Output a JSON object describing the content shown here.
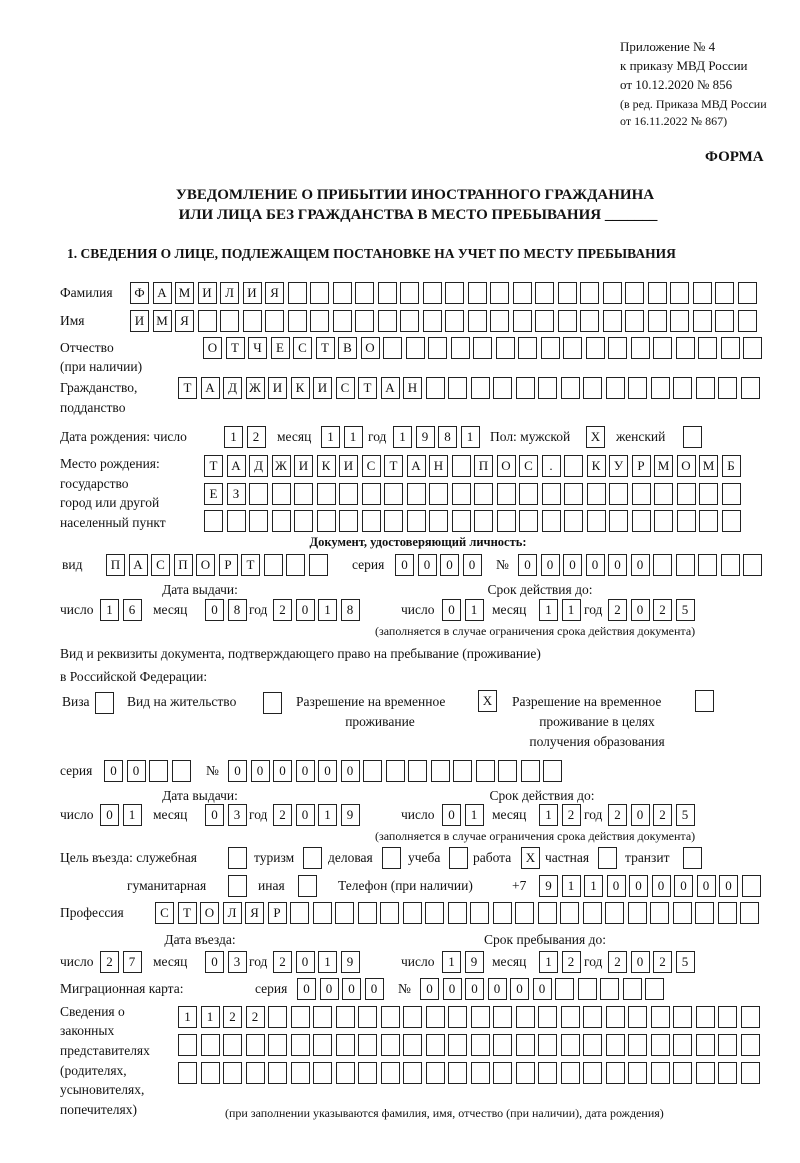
{
  "header": {
    "appendix_line1": "Приложение № 4",
    "appendix_line2": "к приказу МВД России",
    "appendix_line3": "от 10.12.2020 № 856",
    "appendix_line4": "(в ред. Приказа МВД России",
    "appendix_line5": "от 16.11.2022 № 867)",
    "form_label": "ФОРМА",
    "title_line1": "УВЕДОМЛЕНИЕ О ПРИБЫТИИ ИНОСТРАННОГО ГРАЖДАНИНА",
    "title_line2": "ИЛИ ЛИЦА БЕЗ ГРАЖДАНСТВА В МЕСТО ПРЕБЫВАНИЯ _______",
    "section_title": "1. СВЕДЕНИЯ О ЛИЦЕ, ПОДЛЕЖАЩЕМ ПОСТАНОВКЕ НА УЧЕТ ПО МЕСТУ ПРЕБЫВАНИЯ"
  },
  "labels": {
    "surname": "Фамилия",
    "name": "Имя",
    "patronymic": "Отчество",
    "patronymic_note": "(при наличии)",
    "citizenship": "Гражданство,",
    "citizenship2": "подданство",
    "birth_date": "Дата рождения:  число",
    "month": "месяц",
    "year": "год",
    "day": "число",
    "sex_male": "Пол: мужской",
    "sex_female": "женский",
    "birthplace1": "Место рождения:",
    "birthplace2": "государство",
    "birthplace3": "город или другой",
    "birthplace4": "населенный пункт",
    "id_doc": "Документ, удостоверяющий личность:",
    "kind": "вид",
    "series": "серия",
    "number": "№",
    "issue_date": "Дата выдачи:",
    "valid_until": "Срок действия до:",
    "validity_note": "(заполняется в случае ограничения срока действия документа)",
    "residence_doc1": "Вид и реквизиты документа, подтверждающего право на пребывание (проживание)",
    "residence_doc2": "в Российской Федерации:",
    "visa": "Виза",
    "residence_permit": "Вид на жительство",
    "temp_permit1": "Разрешение на временное",
    "temp_permit2": "проживание",
    "edu_permit1": "Разрешение на временное",
    "edu_permit2": "проживание в целях",
    "edu_permit3": "получения образования",
    "purpose": "Цель въезда: служебная",
    "tourism": "туризм",
    "business": "деловая",
    "study": "учеба",
    "work": "работа",
    "private": "частная",
    "transit": "транзит",
    "humanitarian": "гуманитарная",
    "other": "иная",
    "phone": "Телефон (при наличии)",
    "phone_prefix": "+7",
    "profession": "Профессия",
    "entry_date": "Дата въезда:",
    "stay_until": "Срок пребывания до:",
    "migration_card": "Миграционная карта:",
    "reps1": "Сведения о",
    "reps2": "законных",
    "reps3": "представителях",
    "reps4": "(родителях,",
    "reps5": "усыновителях,",
    "reps6": "попечителях)",
    "reps_note": "(при заполнении указываются фамилия, имя, отчество (при наличии), дата рождения)"
  },
  "fields": {
    "surname": [
      "Ф",
      "А",
      "М",
      "И",
      "Л",
      "И",
      "Я",
      "",
      "",
      "",
      "",
      "",
      "",
      "",
      "",
      "",
      "",
      "",
      "",
      "",
      "",
      "",
      "",
      "",
      "",
      "",
      "",
      ""
    ],
    "name": [
      "И",
      "М",
      "Я",
      "",
      "",
      "",
      "",
      "",
      "",
      "",
      "",
      "",
      "",
      "",
      "",
      "",
      "",
      "",
      "",
      "",
      "",
      "",
      "",
      "",
      "",
      "",
      "",
      ""
    ],
    "patronymic": [
      "О",
      "Т",
      "Ч",
      "Е",
      "С",
      "Т",
      "В",
      "О",
      "",
      "",
      "",
      "",
      "",
      "",
      "",
      "",
      "",
      "",
      "",
      "",
      "",
      "",
      "",
      "",
      ""
    ],
    "citizenship": [
      "Т",
      "А",
      "Д",
      "Ж",
      "И",
      "К",
      "И",
      "С",
      "Т",
      "А",
      "Н",
      "",
      "",
      "",
      "",
      "",
      "",
      "",
      "",
      "",
      "",
      "",
      "",
      "",
      "",
      ""
    ],
    "birth_day": [
      "1",
      "2"
    ],
    "birth_month": [
      "1",
      "1"
    ],
    "birth_year": [
      "1",
      "9",
      "8",
      "1"
    ],
    "sex_male": [
      "X"
    ],
    "sex_female": [
      ""
    ],
    "birthplace_row1": [
      "Т",
      "А",
      "Д",
      "Ж",
      "И",
      "К",
      "И",
      "С",
      "Т",
      "А",
      "Н",
      "",
      "П",
      "О",
      "С",
      ".",
      "",
      "К",
      "У",
      "Р",
      "М",
      "О",
      "М",
      "Б"
    ],
    "birthplace_row2": [
      "Е",
      "З",
      "",
      "",
      "",
      "",
      "",
      "",
      "",
      "",
      "",
      "",
      "",
      "",
      "",
      "",
      "",
      "",
      "",
      "",
      "",
      "",
      "",
      ""
    ],
    "birthplace_row3": [
      "",
      "",
      "",
      "",
      "",
      "",
      "",
      "",
      "",
      "",
      "",
      "",
      "",
      "",
      "",
      "",
      "",
      "",
      "",
      "",
      "",
      "",
      "",
      ""
    ],
    "id_kind": [
      "П",
      "А",
      "С",
      "П",
      "О",
      "Р",
      "Т",
      "",
      "",
      ""
    ],
    "id_series": [
      "0",
      "0",
      "0",
      "0"
    ],
    "id_number": [
      "0",
      "0",
      "0",
      "0",
      "0",
      "0",
      "",
      "",
      "",
      "",
      ""
    ],
    "id_issue_day": [
      "1",
      "6"
    ],
    "id_issue_month": [
      "0",
      "8"
    ],
    "id_issue_year": [
      "2",
      "0",
      "1",
      "8"
    ],
    "id_valid_day": [
      "0",
      "1"
    ],
    "id_valid_month": [
      "1",
      "1"
    ],
    "id_valid_year": [
      "2",
      "0",
      "2",
      "5"
    ],
    "visa": [
      ""
    ],
    "residence_permit": [
      ""
    ],
    "temp_permit": [
      "X"
    ],
    "edu_permit": [
      ""
    ],
    "res_series": [
      "0",
      "0",
      "",
      ""
    ],
    "res_number": [
      "0",
      "0",
      "0",
      "0",
      "0",
      "0",
      "",
      "",
      "",
      "",
      "",
      "",
      "",
      "",
      ""
    ],
    "res_issue_day": [
      "0",
      "1"
    ],
    "res_issue_month": [
      "0",
      "3"
    ],
    "res_issue_year": [
      "2",
      "0",
      "1",
      "9"
    ],
    "res_valid_day": [
      "0",
      "1"
    ],
    "res_valid_month": [
      "1",
      "2"
    ],
    "res_valid_year": [
      "2",
      "0",
      "2",
      "5"
    ],
    "p_official": [
      ""
    ],
    "p_tourism": [
      ""
    ],
    "p_business": [
      ""
    ],
    "p_study": [
      ""
    ],
    "p_work": [
      "X"
    ],
    "p_private": [
      ""
    ],
    "p_transit": [
      ""
    ],
    "p_humanitarian": [
      ""
    ],
    "p_other": [
      ""
    ],
    "phone": [
      "9",
      "1",
      "1",
      "0",
      "0",
      "0",
      "0",
      "0",
      "0",
      ""
    ],
    "profession": [
      "С",
      "Т",
      "О",
      "Л",
      "Я",
      "Р",
      "",
      "",
      "",
      "",
      "",
      "",
      "",
      "",
      "",
      "",
      "",
      "",
      "",
      "",
      "",
      "",
      "",
      "",
      "",
      "",
      ""
    ],
    "entry_day": [
      "2",
      "7"
    ],
    "entry_month": [
      "0",
      "3"
    ],
    "entry_year": [
      "2",
      "0",
      "1",
      "9"
    ],
    "stay_day": [
      "1",
      "9"
    ],
    "stay_month": [
      "1",
      "2"
    ],
    "stay_year": [
      "2",
      "0",
      "2",
      "5"
    ],
    "mig_series": [
      "0",
      "0",
      "0",
      "0"
    ],
    "mig_number": [
      "0",
      "0",
      "0",
      "0",
      "0",
      "0",
      "",
      "",
      "",
      "",
      ""
    ],
    "reps_row1": [
      "1",
      "1",
      "2",
      "2",
      "",
      "",
      "",
      "",
      "",
      "",
      "",
      "",
      "",
      "",
      "",
      "",
      "",
      "",
      "",
      "",
      "",
      "",
      "",
      "",
      "",
      ""
    ],
    "reps_row2": [
      "",
      "",
      "",
      "",
      "",
      "",
      "",
      "",
      "",
      "",
      "",
      "",
      "",
      "",
      "",
      "",
      "",
      "",
      "",
      "",
      "",
      "",
      "",
      "",
      "",
      ""
    ],
    "reps_row3": [
      "",
      "",
      "",
      "",
      "",
      "",
      "",
      "",
      "",
      "",
      "",
      "",
      "",
      "",
      "",
      "",
      "",
      "",
      "",
      "",
      "",
      "",
      "",
      "",
      "",
      ""
    ]
  }
}
